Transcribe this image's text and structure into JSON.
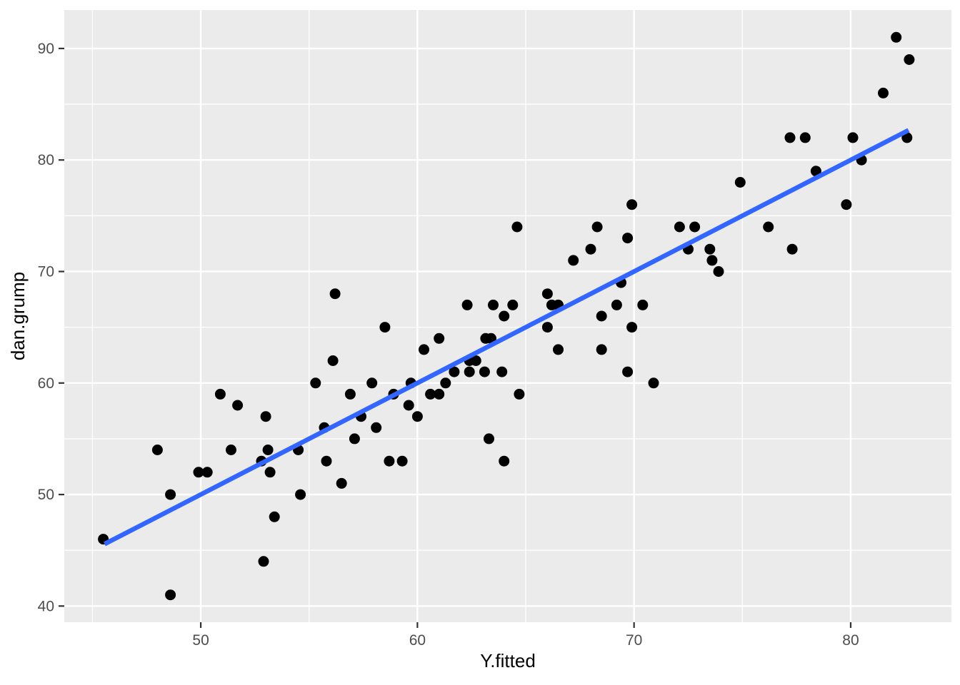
{
  "chart_data": {
    "type": "scatter",
    "title": "",
    "xlabel": "Y.fitted",
    "ylabel": "dan.grump",
    "x_ticks": [
      50,
      60,
      70,
      80
    ],
    "y_ticks": [
      40,
      50,
      60,
      70,
      80,
      90
    ],
    "x_minor_ticks": [
      45,
      55,
      65,
      75
    ],
    "y_minor_ticks": [
      45,
      55,
      65,
      75,
      85
    ],
    "xlim": [
      43.7,
      84.65
    ],
    "ylim": [
      38.55,
      93.45
    ],
    "grid": "on",
    "legend": "none",
    "points": [
      [
        45.5,
        46
      ],
      [
        48.0,
        54
      ],
      [
        48.6,
        50
      ],
      [
        48.6,
        41
      ],
      [
        49.9,
        52
      ],
      [
        50.3,
        52
      ],
      [
        50.9,
        59
      ],
      [
        51.4,
        54
      ],
      [
        51.7,
        58
      ],
      [
        52.8,
        53
      ],
      [
        52.9,
        44
      ],
      [
        53.0,
        57
      ],
      [
        53.1,
        54
      ],
      [
        53.2,
        52
      ],
      [
        53.4,
        48
      ],
      [
        54.5,
        54
      ],
      [
        54.6,
        50
      ],
      [
        55.3,
        60
      ],
      [
        55.7,
        56
      ],
      [
        55.8,
        53
      ],
      [
        56.1,
        62
      ],
      [
        56.2,
        68
      ],
      [
        56.5,
        51
      ],
      [
        56.9,
        59
      ],
      [
        57.1,
        55
      ],
      [
        57.4,
        57
      ],
      [
        57.9,
        60
      ],
      [
        58.1,
        56
      ],
      [
        58.5,
        65
      ],
      [
        58.7,
        53
      ],
      [
        58.9,
        59
      ],
      [
        59.3,
        53
      ],
      [
        59.6,
        58
      ],
      [
        59.7,
        60
      ],
      [
        60.0,
        57
      ],
      [
        60.3,
        63
      ],
      [
        60.6,
        59
      ],
      [
        61.0,
        59
      ],
      [
        61.0,
        64
      ],
      [
        61.3,
        60
      ],
      [
        61.7,
        61
      ],
      [
        62.3,
        67
      ],
      [
        62.4,
        61
      ],
      [
        62.4,
        62
      ],
      [
        62.7,
        62
      ],
      [
        63.1,
        61
      ],
      [
        63.15,
        64
      ],
      [
        63.4,
        64
      ],
      [
        63.3,
        55
      ],
      [
        63.5,
        67
      ],
      [
        63.9,
        61
      ],
      [
        64.0,
        53
      ],
      [
        64.0,
        66
      ],
      [
        64.4,
        67
      ],
      [
        64.6,
        74
      ],
      [
        64.7,
        59
      ],
      [
        66.0,
        65
      ],
      [
        66.0,
        68
      ],
      [
        66.2,
        67
      ],
      [
        66.5,
        63
      ],
      [
        66.5,
        67
      ],
      [
        67.2,
        71
      ],
      [
        68.0,
        72
      ],
      [
        68.3,
        74
      ],
      [
        68.5,
        63
      ],
      [
        68.5,
        66
      ],
      [
        69.2,
        67
      ],
      [
        69.4,
        69
      ],
      [
        69.7,
        61
      ],
      [
        69.7,
        73
      ],
      [
        69.9,
        65
      ],
      [
        69.9,
        76
      ],
      [
        70.4,
        67
      ],
      [
        70.9,
        60
      ],
      [
        72.1,
        74
      ],
      [
        72.5,
        72
      ],
      [
        72.8,
        74
      ],
      [
        73.5,
        72
      ],
      [
        73.6,
        71
      ],
      [
        73.9,
        70
      ],
      [
        74.9,
        78
      ],
      [
        76.2,
        74
      ],
      [
        77.2,
        82
      ],
      [
        77.3,
        72
      ],
      [
        77.9,
        82
      ],
      [
        78.4,
        79
      ],
      [
        79.8,
        76
      ],
      [
        80.1,
        82
      ],
      [
        80.5,
        80
      ],
      [
        81.5,
        86
      ],
      [
        82.1,
        91
      ],
      [
        82.6,
        82
      ],
      [
        82.7,
        89
      ]
    ],
    "fit_line": {
      "x1": 45.56,
      "y1": 45.56,
      "x2": 82.67,
      "y2": 82.67
    },
    "colors": {
      "figure_bg": "#FFFFFF",
      "panel_bg": "#EBEBEB",
      "grid_major": "#FFFFFF",
      "grid_minor": "#FFFFFF",
      "point": "#000000",
      "fit_line": "#3366FF",
      "tick_mark": "#333333",
      "tick_label": "#4D4D4D",
      "axis_title": "#000000"
    }
  }
}
